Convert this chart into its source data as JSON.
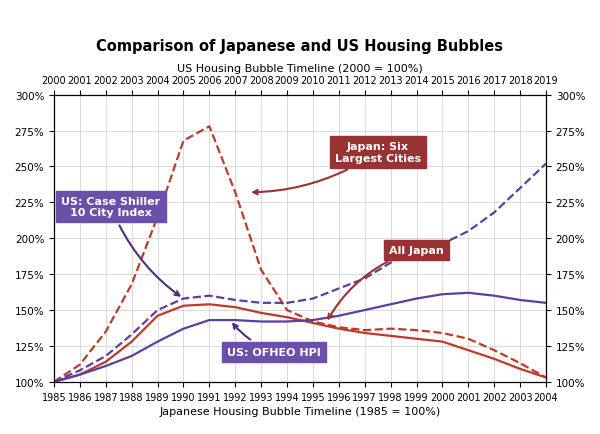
{
  "title": "Comparison of Japanese and US Housing Bubbles",
  "top_xlabel": "US Housing Bubble Timeline (2000 = 100%)",
  "bottom_xlabel": "Japanese Housing Bubble Timeline (1985 = 100%)",
  "ylim": [
    100,
    300
  ],
  "yticks": [
    100,
    125,
    150,
    175,
    200,
    225,
    250,
    275,
    300
  ],
  "japan_x": [
    1985,
    1986,
    1987,
    1988,
    1989,
    1990,
    1991,
    1992,
    1993,
    1994,
    1995,
    1996,
    1997,
    1998,
    1999,
    2000,
    2001,
    2002,
    2003,
    2004
  ],
  "japan_six_cities_y": [
    100,
    112,
    135,
    168,
    215,
    268,
    278,
    232,
    178,
    150,
    142,
    138,
    136,
    137,
    136,
    134,
    130,
    122,
    113,
    103
  ],
  "all_japan_y": [
    100,
    105,
    114,
    128,
    146,
    153,
    154,
    152,
    148,
    145,
    141,
    137,
    134,
    132,
    130,
    128,
    122,
    116,
    109,
    103
  ],
  "us_case_shiller_x": [
    1985,
    1986,
    1987,
    1988,
    1989,
    1990,
    1991,
    1992,
    1993,
    1994,
    1995,
    1996,
    1997,
    1998,
    1999,
    2000,
    2001,
    2002,
    2003,
    2004
  ],
  "us_case_shiller_y": [
    100,
    108,
    118,
    133,
    150,
    158,
    160,
    157,
    155,
    155,
    158,
    165,
    172,
    183,
    192,
    196,
    205,
    218,
    235,
    252
  ],
  "us_ofheo_x": [
    1985,
    1986,
    1987,
    1988,
    1989,
    1990,
    1991,
    1992,
    1993,
    1994,
    1995,
    1996,
    1997,
    1998,
    1999,
    2000,
    2001,
    2002,
    2003,
    2004
  ],
  "us_ofheo_y": [
    100,
    105,
    111,
    118,
    128,
    137,
    143,
    143,
    142,
    142,
    143,
    146,
    150,
    154,
    158,
    161,
    162,
    160,
    157,
    155
  ],
  "japan_six_cities_color": "#c0392b",
  "all_japan_color": "#c0392b",
  "us_case_shiller_color": "#5b3fa0",
  "us_ofheo_color": "#5b3fa0",
  "annotation_us_case_shiller": "US: Case Shiller\n10 City Index",
  "annotation_japan_six": "Japan: Six\nLargest Cities",
  "annotation_all_japan": "All Japan",
  "annotation_us_ofheo": "US: OFHEO HPI",
  "us_top_ticks_labels": [
    2000,
    2001,
    2002,
    2003,
    2004,
    2005,
    2006,
    2007,
    2008,
    2009,
    2010,
    2011,
    2012,
    2013,
    2014,
    2015,
    2016,
    2017,
    2018,
    2019
  ],
  "japan_bottom_ticks": [
    1985,
    1986,
    1987,
    1988,
    1989,
    1990,
    1991,
    1992,
    1993,
    1994,
    1995,
    1996,
    1997,
    1998,
    1999,
    2000,
    2001,
    2002,
    2003,
    2004
  ]
}
